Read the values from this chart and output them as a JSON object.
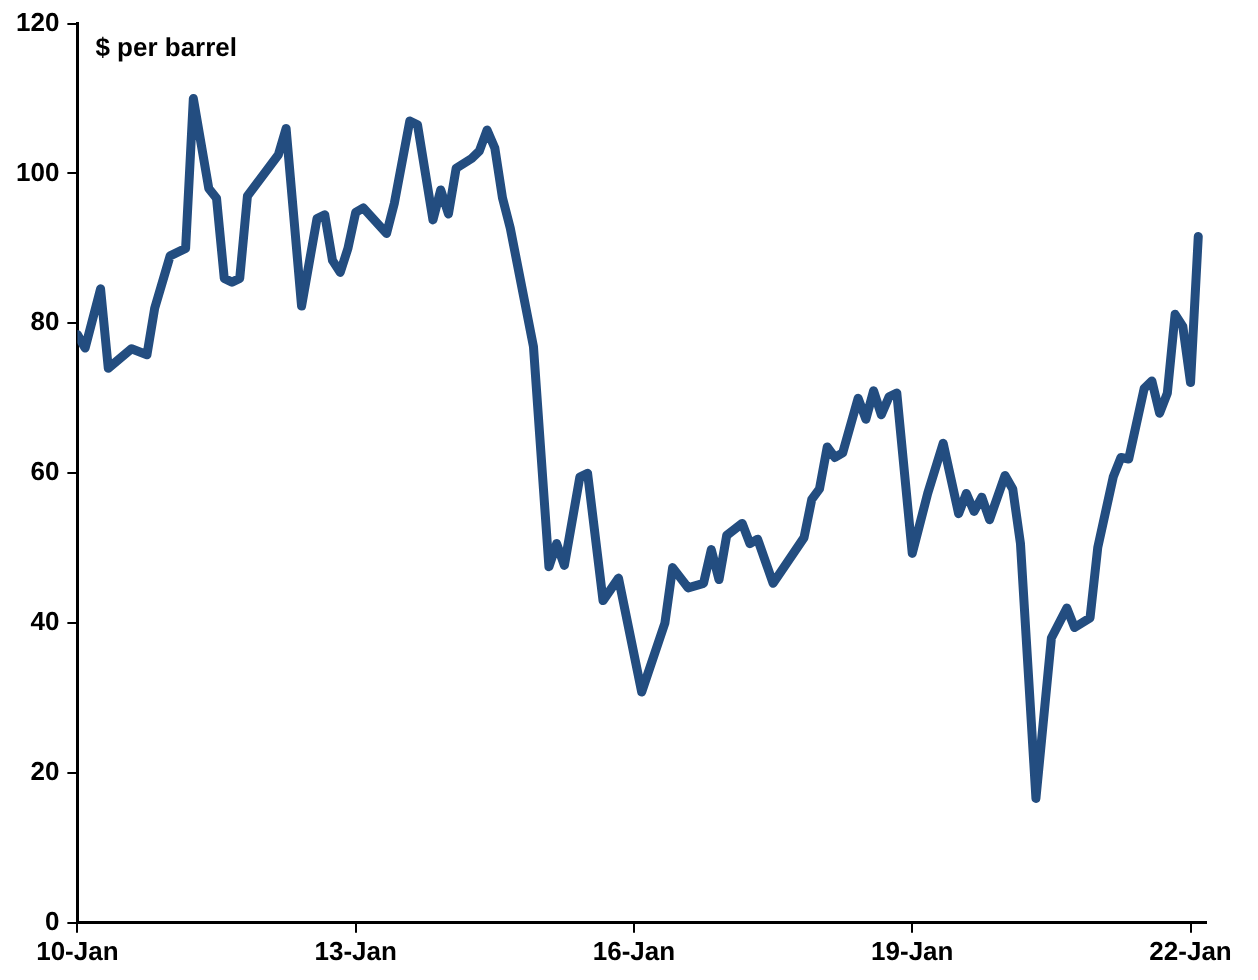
{
  "chart_data": {
    "type": "line",
    "ylabel": "$ per barrel",
    "x": [
      "2010-01",
      "2010-02",
      "2010-04",
      "2010-05",
      "2010-08",
      "2010-10",
      "2010-11",
      "2011-01",
      "2011-03",
      "2011-04",
      "2011-06",
      "2011-07",
      "2011-08",
      "2011-09",
      "2011-10",
      "2011-11",
      "2012-03",
      "2012-04",
      "2012-06",
      "2012-08",
      "2012-09",
      "2012-10",
      "2012-11",
      "2012-12",
      "2013-01",
      "2013-02",
      "2013-05",
      "2013-06",
      "2013-08",
      "2013-09",
      "2013-11",
      "2013-12",
      "2014-01",
      "2014-02",
      "2014-04",
      "2014-05",
      "2014-06",
      "2014-07",
      "2014-08",
      "2014-09",
      "2014-12",
      "2015-02",
      "2015-03",
      "2015-04",
      "2015-06",
      "2015-07",
      "2015-09",
      "2015-11",
      "2016-02",
      "2016-05",
      "2016-06",
      "2016-08",
      "2016-10",
      "2016-11",
      "2016-12",
      "2017-01",
      "2017-03",
      "2017-04",
      "2017-05",
      "2017-07",
      "2017-11",
      "2017-12",
      "2018-01",
      "2018-02",
      "2018-03",
      "2018-04",
      "2018-06",
      "2018-07",
      "2018-08",
      "2018-09",
      "2018-10",
      "2018-11",
      "2019-01",
      "2019-03",
      "2019-05",
      "2019-07",
      "2019-08",
      "2019-09",
      "2019-10",
      "2019-11",
      "2020-01",
      "2020-02",
      "2020-03",
      "2020-05",
      "2020-07",
      "2020-09",
      "2020-10",
      "2020-12",
      "2021-01",
      "2021-03",
      "2021-04",
      "2021-05",
      "2021-07",
      "2021-08",
      "2021-09",
      "2021-10",
      "2021-11",
      "2021-12",
      "2022-01",
      "2022-02"
    ],
    "series": [
      {
        "color": "#234d80",
        "values": [
          78.5,
          76.7,
          84.6,
          74,
          76.6,
          75.8,
          82,
          89,
          90,
          110,
          98,
          96.7,
          86,
          85.5,
          86,
          97,
          102.5,
          106,
          82.3,
          94,
          94.5,
          88.4,
          86.8,
          90,
          94.8,
          95.4,
          92,
          96,
          107,
          106.5,
          93.8,
          97.8,
          94.6,
          100.7,
          102,
          103,
          105.8,
          103.4,
          96.7,
          92.7,
          76.9,
          47.5,
          50.6,
          47.7,
          59.5,
          60,
          43,
          46,
          30.8,
          40,
          47.4,
          44.7,
          45.3,
          49.8,
          45.8,
          51.7,
          53.3,
          50.6,
          51.2,
          45.3,
          51.4,
          56.5,
          57.9,
          63.5,
          62.1,
          62.7,
          70,
          67.2,
          71,
          67.8,
          70.2,
          70.7,
          49.3,
          57.3,
          64,
          54.6,
          57.3,
          54.9,
          56.8,
          53.8,
          59.7,
          57.9,
          50.6,
          16.6,
          38,
          42,
          39.4,
          40.7,
          50.1,
          59.5,
          62.1,
          61.9,
          71.3,
          72.3,
          68,
          70.7,
          81.2,
          79.6,
          72.1,
          91.6
        ]
      }
    ],
    "xlim": [
      "2010-01",
      "2022-03"
    ],
    "xticks": [
      {
        "value": "2010-01",
        "label": "10-Jan"
      },
      {
        "value": "2013-01",
        "label": "13-Jan"
      },
      {
        "value": "2016-01",
        "label": "16-Jan"
      },
      {
        "value": "2019-01",
        "label": "19-Jan"
      },
      {
        "value": "2022-01",
        "label": "22-Jan"
      }
    ],
    "ylim": [
      0,
      120
    ],
    "yticks": [
      0,
      20,
      40,
      60,
      80,
      100,
      120
    ],
    "grid": false,
    "legend": false,
    "marker": "none",
    "line_style": "solid"
  }
}
